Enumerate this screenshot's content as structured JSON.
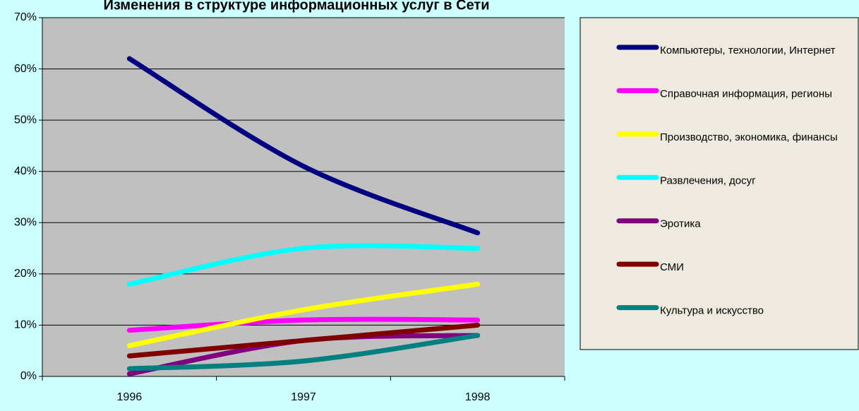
{
  "chart_data": {
    "type": "line",
    "smooth": true,
    "title": "Изменения в структуре информационных услуг в Сети",
    "categories": [
      "1996",
      "1997",
      "1998"
    ],
    "series": [
      {
        "name": "Компьютеры, технологии, Интернет",
        "color": "#000080",
        "values": [
          62,
          41,
          28
        ]
      },
      {
        "name": "Справочная информация, регионы",
        "color": "#ff00ff",
        "values": [
          9,
          11,
          11
        ]
      },
      {
        "name": "Производство, экономика, финансы",
        "color": "#ffff00",
        "values": [
          6,
          13,
          18
        ]
      },
      {
        "name": "Развлечения, досуг",
        "color": "#00ffff",
        "values": [
          18,
          25,
          25
        ]
      },
      {
        "name": "Эротика",
        "color": "#800080",
        "values": [
          0.5,
          7,
          8
        ]
      },
      {
        "name": "СМИ",
        "color": "#800000",
        "values": [
          4,
          7,
          10
        ]
      },
      {
        "name": "Культура и искусство",
        "color": "#008080",
        "values": [
          1.5,
          3,
          8
        ]
      }
    ],
    "ylim": [
      0,
      70
    ],
    "yticks": [
      {
        "value": 0,
        "label": "0%"
      },
      {
        "value": 10,
        "label": "10%"
      },
      {
        "value": 20,
        "label": "20%"
      },
      {
        "value": 30,
        "label": "30%"
      },
      {
        "value": 40,
        "label": "40%"
      },
      {
        "value": 50,
        "label": "50%"
      },
      {
        "value": 60,
        "label": "60%"
      },
      {
        "value": 70,
        "label": "70%"
      }
    ],
    "grid": true,
    "plot_background": "#c0c0c0",
    "legend": "right"
  }
}
